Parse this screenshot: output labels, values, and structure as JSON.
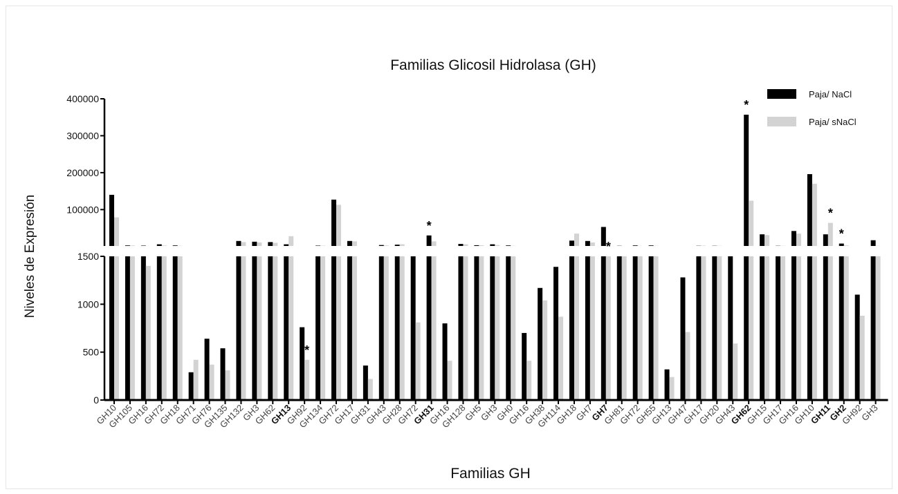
{
  "chart_data": {
    "type": "bar",
    "title": "Familias Glicosil Hidrolasa (GH)",
    "xlabel": "Familias GH",
    "ylabel": "Niveles de Expresión",
    "axis_break": true,
    "lower_ylim": [
      0,
      1500
    ],
    "lower_ticks": [
      0,
      500,
      1000,
      1500
    ],
    "upper_ylim": [
      1500,
      400000
    ],
    "upper_ticks": [
      "100000",
      "200000",
      "300000",
      "400000"
    ],
    "legend_position": "top-right",
    "categories": [
      "GH10",
      "GH105",
      "GH16",
      "GH72",
      "GH18",
      "GH71",
      "GH76",
      "GH135",
      "GH132",
      "GH3",
      "GH62",
      "GH13",
      "GH92",
      "GH134",
      "GH72",
      "GH17",
      "GH31",
      "GH43",
      "GH28",
      "GH72",
      "GH31",
      "GH16",
      "GH128",
      "GH5",
      "GH3",
      "GH0",
      "GH16",
      "GH38",
      "GH114",
      "GH18",
      "GH7",
      "GH7",
      "GH81",
      "GH72",
      "GH55",
      "GH13",
      "GH47",
      "GH17",
      "GH20",
      "GH43",
      "GH62",
      "GH15",
      "GH17",
      "GH16",
      "GH10",
      "GH11",
      "GH2",
      "GH92",
      "GH3"
    ],
    "bold_categories": [
      11,
      20,
      31,
      40,
      45,
      46
    ],
    "significant": [
      {
        "index": 12,
        "series": 1,
        "label": "*"
      },
      {
        "index": 20,
        "series": 0,
        "label": "*"
      },
      {
        "index": 31,
        "series": 1,
        "label": "*"
      },
      {
        "index": 40,
        "series": 0,
        "label": "*"
      },
      {
        "index": 45,
        "series": 1,
        "label": "*"
      },
      {
        "index": 46,
        "series": 0,
        "label": "*"
      }
    ],
    "series": [
      {
        "name": "Paja/ NaCl",
        "color": "#000000",
        "values": [
          140000,
          3000,
          2500,
          6000,
          3000,
          290,
          640,
          540,
          15000,
          13000,
          12000,
          6000,
          760,
          2500,
          127000,
          15000,
          360,
          4000,
          5000,
          1500,
          30000,
          800,
          7000,
          3500,
          6000,
          3000,
          700,
          1170,
          1390,
          16000,
          15000,
          53000,
          2000,
          3000,
          3000,
          320,
          1280,
          2000,
          2000,
          1500,
          357000,
          33000,
          2000,
          42000,
          196000,
          33000,
          8000,
          1100,
          17000
        ]
      },
      {
        "name": "Paja/ sNaCl",
        "color": "#d3d3d3",
        "values": [
          79000,
          3000,
          1400,
          3000,
          2000,
          420,
          370,
          310,
          12000,
          11000,
          10000,
          28000,
          420,
          2500,
          113000,
          14000,
          220,
          3000,
          6000,
          810,
          14000,
          410,
          6000,
          3500,
          4000,
          2000,
          410,
          1040,
          870,
          35000,
          11000,
          1500,
          1500,
          2000,
          2000,
          240,
          710,
          2500,
          2000,
          590,
          124000,
          31000,
          2000,
          35000,
          170000,
          64000,
          3000,
          880,
          2000
        ]
      }
    ]
  }
}
